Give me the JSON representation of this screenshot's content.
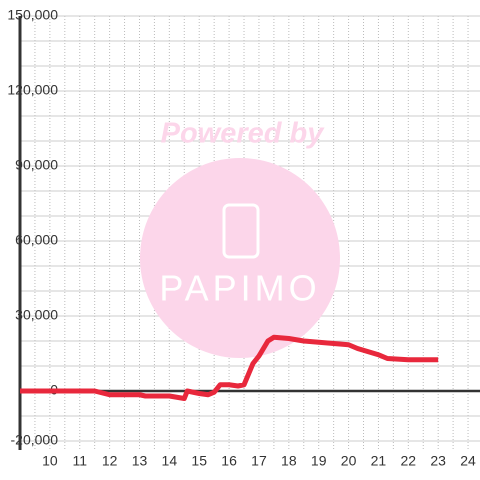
{
  "chart_data": {
    "type": "line",
    "watermark": {
      "text": "Powered by",
      "logo": "PAPIMO"
    },
    "x": [
      9,
      11.5,
      12,
      13,
      13.2,
      14,
      14.5,
      14.6,
      15,
      15.3,
      15.5,
      15.7,
      16,
      16.3,
      16.5,
      16.8,
      17,
      17.3,
      17.5,
      18,
      18.5,
      19,
      20,
      20.3,
      21,
      21.3,
      22,
      23
    ],
    "series": [
      {
        "color": "#e8283c",
        "values": [
          0,
          0,
          -1500,
          -1500,
          -2000,
          -2000,
          -3000,
          0,
          -1000,
          -1500,
          -500,
          2500,
          2500,
          2000,
          2500,
          11000,
          14000,
          20000,
          21500,
          21000,
          20000,
          19500,
          18500,
          17000,
          14500,
          13000,
          12500,
          12500
        ]
      }
    ],
    "xlim": [
      9,
      24.4
    ],
    "xticks": [
      10,
      11,
      12,
      13,
      14,
      15,
      16,
      17,
      18,
      19,
      20,
      21,
      22,
      23,
      24
    ],
    "xgrid": [
      9.5,
      10,
      10.5,
      11,
      11.5,
      12,
      12.5,
      13,
      13.5,
      14,
      14.5,
      15,
      15.5,
      16,
      16.5,
      17,
      17.5,
      18,
      18.5,
      19,
      19.5,
      20,
      20.5,
      21,
      21.5,
      22,
      22.5,
      23,
      23.5,
      24
    ],
    "ylim": [
      -20000,
      150000
    ],
    "yticks": [
      {
        "value": -20000,
        "label": "-20,000"
      },
      0,
      {
        "value": 30000,
        "label": "30,000"
      },
      {
        "value": 60000,
        "label": "60,000"
      },
      {
        "value": 90000,
        "label": "90,000"
      },
      {
        "value": 120000,
        "label": "120,000"
      },
      {
        "value": 150000,
        "label": "150,000"
      }
    ],
    "ygrid": [
      -10000,
      10000,
      20000,
      40000,
      50000,
      70000,
      80000,
      100000,
      110000,
      130000,
      140000
    ],
    "grid": true
  }
}
